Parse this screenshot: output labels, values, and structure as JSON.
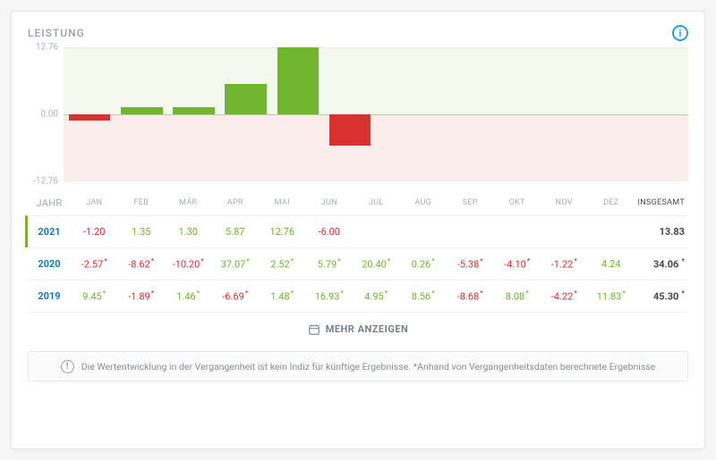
{
  "title": "LEISTUNG",
  "info_tooltip": "i",
  "chart": {
    "type": "bar",
    "y_max": 12.76,
    "y_min": -12.76,
    "y_ticks_labels": {
      "top": "12.76",
      "mid": "0.00",
      "bot": "-12.76"
    },
    "positive_color": "#6fb52e",
    "negative_color": "#d8312f",
    "pos_bg": "#f2f8ec",
    "neg_bg": "#fbecec",
    "zero_line_color": "#b7cfa3",
    "bars": [
      -1.2,
      1.35,
      1.3,
      5.87,
      12.76,
      -6.0,
      null,
      null,
      null,
      null,
      null,
      null
    ]
  },
  "table": {
    "header": {
      "year_label": "JAHR",
      "months": [
        "JAN",
        "FEB",
        "MÄR",
        "APR",
        "MAI",
        "JUN",
        "JUL",
        "AUG",
        "SEP",
        "OKT",
        "NOV",
        "DEZ"
      ],
      "total_label": "INSGESAMT"
    },
    "rows": [
      {
        "year": "2021",
        "active": true,
        "values": [
          {
            "v": "-1.20",
            "s": false,
            "p": false
          },
          {
            "v": "1.35",
            "s": false,
            "p": true
          },
          {
            "v": "1.30",
            "s": false,
            "p": true
          },
          {
            "v": "5.87",
            "s": false,
            "p": true
          },
          {
            "v": "12.76",
            "s": false,
            "p": true
          },
          {
            "v": "-6.00",
            "s": false,
            "p": false
          },
          null,
          null,
          null,
          null,
          null,
          null
        ],
        "total": {
          "v": "13.83",
          "s": false
        }
      },
      {
        "year": "2020",
        "active": false,
        "values": [
          {
            "v": "-2.57",
            "s": true,
            "p": false
          },
          {
            "v": "-8.62",
            "s": true,
            "p": false
          },
          {
            "v": "-10.20",
            "s": true,
            "p": false
          },
          {
            "v": "37.07",
            "s": true,
            "p": true
          },
          {
            "v": "2.52",
            "s": true,
            "p": true
          },
          {
            "v": "5.79",
            "s": true,
            "p": true
          },
          {
            "v": "20.40",
            "s": true,
            "p": true
          },
          {
            "v": "0.26",
            "s": true,
            "p": true
          },
          {
            "v": "-5.38",
            "s": true,
            "p": false
          },
          {
            "v": "-4.10",
            "s": true,
            "p": false
          },
          {
            "v": "-1.22",
            "s": true,
            "p": false
          },
          {
            "v": "4.24",
            "s": false,
            "p": true
          }
        ],
        "total": {
          "v": "34.06",
          "s": true
        }
      },
      {
        "year": "2019",
        "active": false,
        "values": [
          {
            "v": "9.45",
            "s": true,
            "p": true
          },
          {
            "v": "-1.89",
            "s": true,
            "p": false
          },
          {
            "v": "1.46",
            "s": true,
            "p": true
          },
          {
            "v": "-6.69",
            "s": true,
            "p": false
          },
          {
            "v": "1.48",
            "s": true,
            "p": true
          },
          {
            "v": "16.93",
            "s": true,
            "p": true
          },
          {
            "v": "4.95",
            "s": true,
            "p": true
          },
          {
            "v": "8.56",
            "s": true,
            "p": true
          },
          {
            "v": "-8.68",
            "s": true,
            "p": false
          },
          {
            "v": "8.08",
            "s": true,
            "p": true
          },
          {
            "v": "-4.22",
            "s": true,
            "p": false
          },
          {
            "v": "11.83",
            "s": true,
            "p": true
          }
        ],
        "total": {
          "v": "45.30",
          "s": true
        }
      }
    ]
  },
  "show_more_label": "MEHR ANZEIGEN",
  "disclaimer_text": "Die Wertentwicklung in der Vergangenheit ist kein Indiz für künftige Ergebnisse. *Anhand von Vergangenheitsdaten berechnete Ergebnisse",
  "warn_glyph": "!"
}
